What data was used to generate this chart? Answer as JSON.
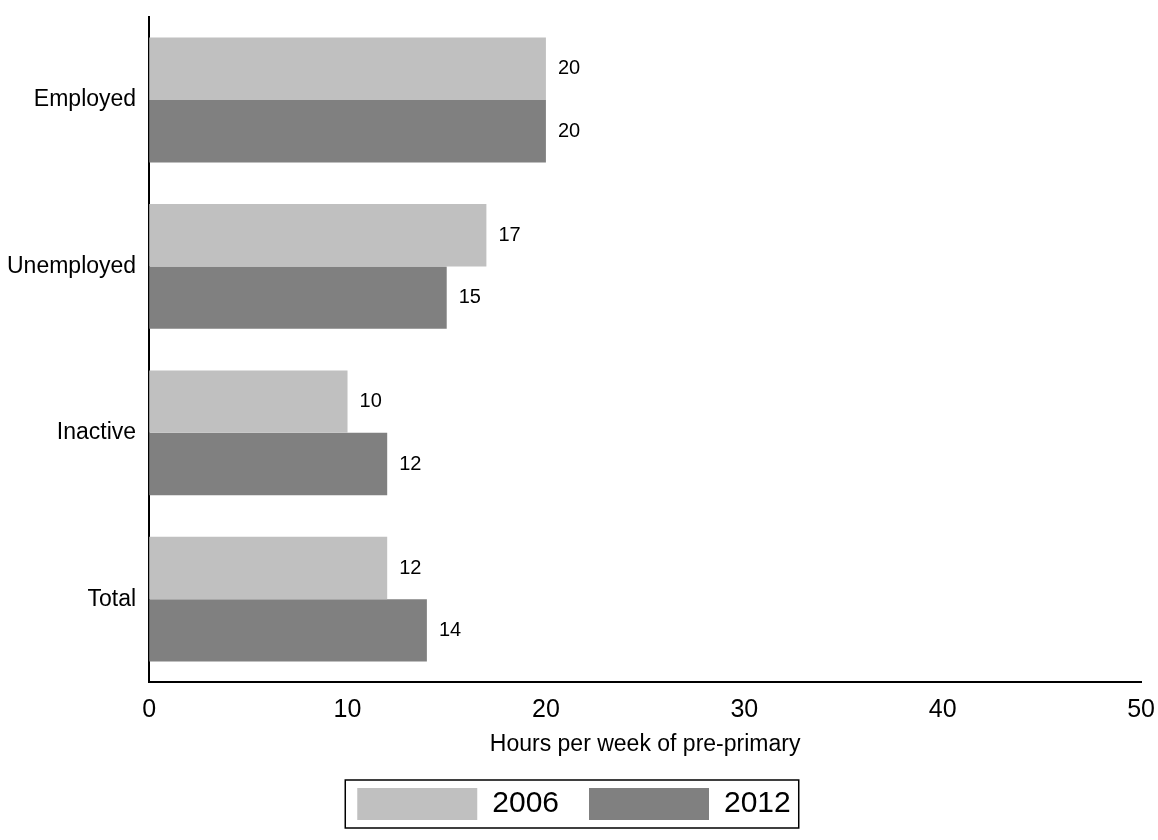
{
  "chart_data": {
    "type": "bar",
    "orientation": "horizontal",
    "xlabel": "Hours per week of pre-primary",
    "categories": [
      "Employed",
      "Unemployed",
      "Inactive",
      "Total"
    ],
    "series": [
      {
        "name": "2006",
        "color": "#c0c0c0",
        "values": [
          20,
          17,
          10,
          12
        ]
      },
      {
        "name": "2012",
        "color": "#808080",
        "values": [
          20,
          15,
          12,
          14
        ]
      }
    ],
    "xlim": [
      0,
      50
    ],
    "xticks": [
      0,
      10,
      20,
      30,
      40,
      50
    ],
    "grid": false,
    "legend": "bottom",
    "data_labels": true
  }
}
